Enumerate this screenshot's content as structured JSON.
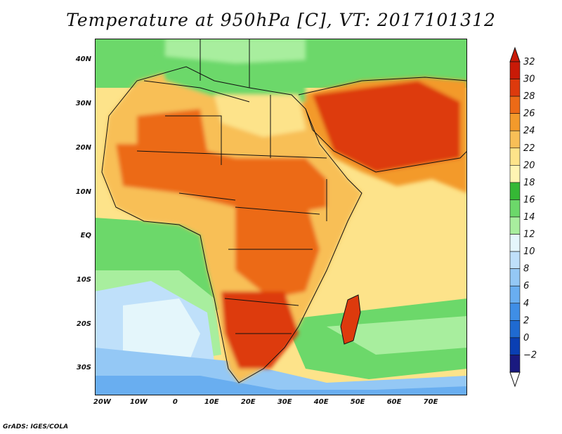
{
  "title": "Temperature at 950hPa [C], VT: 2017101312",
  "credit": "GrADS: IGES/COLA",
  "map": {
    "lat_ticks": [
      "40N",
      "30N",
      "20N",
      "10N",
      "EQ",
      "10S",
      "20S",
      "30S"
    ],
    "lon_ticks": [
      "20W",
      "10W",
      "0",
      "10E",
      "20E",
      "30E",
      "40E",
      "50E",
      "60E",
      "70E"
    ],
    "lat_range": [
      -36,
      45
    ],
    "lon_range": [
      -22,
      80
    ]
  },
  "colorbar": {
    "levels": [
      -2,
      0,
      2,
      4,
      6,
      8,
      10,
      12,
      14,
      16,
      18,
      20,
      22,
      24,
      26,
      28,
      30,
      32
    ],
    "labels": [
      "32",
      "30",
      "28",
      "26",
      "24",
      "22",
      "20",
      "18",
      "16",
      "14",
      "12",
      "10",
      "8",
      "6",
      "4",
      "2",
      "0",
      "−2"
    ],
    "colors": [
      "#1a1a80",
      "#0a3fb3",
      "#1f6ad1",
      "#3f8ee6",
      "#69aef0",
      "#94c8f5",
      "#bfe0fa",
      "#e4f6fb",
      "#a8ee9e",
      "#6cd86a",
      "#35b835",
      "#fff4b3",
      "#fde38a",
      "#f8bf57",
      "#f39a2b",
      "#ec6a17",
      "#dd3a0d",
      "#c91a07"
    ]
  }
}
